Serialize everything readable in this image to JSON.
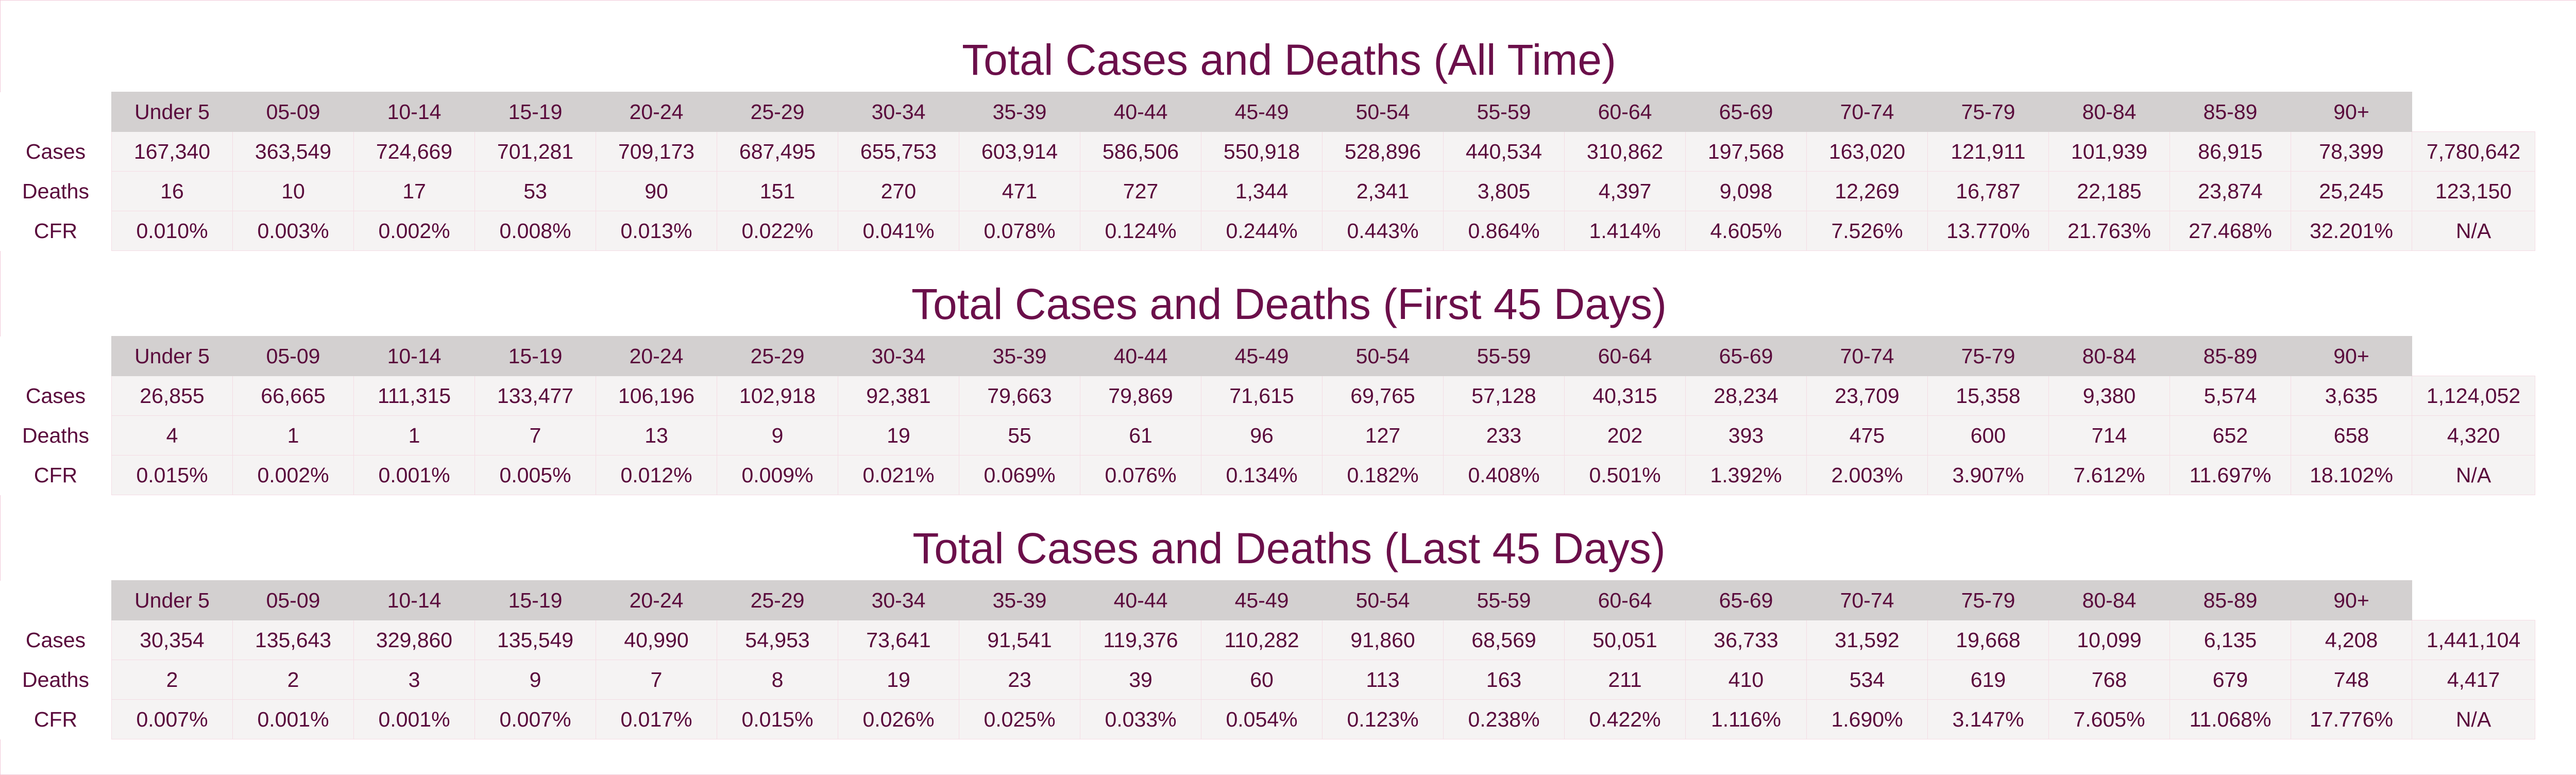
{
  "chart_data": {
    "type": "table",
    "columns": [
      "Under 5",
      "05-09",
      "10-14",
      "15-19",
      "20-24",
      "25-29",
      "30-34",
      "35-39",
      "40-44",
      "45-49",
      "50-54",
      "55-59",
      "60-64",
      "65-69",
      "70-74",
      "75-79",
      "80-84",
      "85-89",
      "90+",
      ""
    ],
    "row_labels": [
      "Cases",
      "Deaths",
      "CFR"
    ],
    "tables": [
      {
        "title": "Total Cases and Deaths (All Time)",
        "rows": [
          [
            "167,340",
            "363,549",
            "724,669",
            "701,281",
            "709,173",
            "687,495",
            "655,753",
            "603,914",
            "586,506",
            "550,918",
            "528,896",
            "440,534",
            "310,862",
            "197,568",
            "163,020",
            "121,911",
            "101,939",
            "86,915",
            "78,399",
            "7,780,642"
          ],
          [
            "16",
            "10",
            "17",
            "53",
            "90",
            "151",
            "270",
            "471",
            "727",
            "1,344",
            "2,341",
            "3,805",
            "4,397",
            "9,098",
            "12,269",
            "16,787",
            "22,185",
            "23,874",
            "25,245",
            "123,150"
          ],
          [
            "0.010%",
            "0.003%",
            "0.002%",
            "0.008%",
            "0.013%",
            "0.022%",
            "0.041%",
            "0.078%",
            "0.124%",
            "0.244%",
            "0.443%",
            "0.864%",
            "1.414%",
            "4.605%",
            "7.526%",
            "13.770%",
            "21.763%",
            "27.468%",
            "32.201%",
            "N/A"
          ]
        ]
      },
      {
        "title": "Total Cases and Deaths (First 45 Days)",
        "rows": [
          [
            "26,855",
            "66,665",
            "111,315",
            "133,477",
            "106,196",
            "102,918",
            "92,381",
            "79,663",
            "79,869",
            "71,615",
            "69,765",
            "57,128",
            "40,315",
            "28,234",
            "23,709",
            "15,358",
            "9,380",
            "5,574",
            "3,635",
            "1,124,052"
          ],
          [
            "4",
            "1",
            "1",
            "7",
            "13",
            "9",
            "19",
            "55",
            "61",
            "96",
            "127",
            "233",
            "202",
            "393",
            "475",
            "600",
            "714",
            "652",
            "658",
            "4,320"
          ],
          [
            "0.015%",
            "0.002%",
            "0.001%",
            "0.005%",
            "0.012%",
            "0.009%",
            "0.021%",
            "0.069%",
            "0.076%",
            "0.134%",
            "0.182%",
            "0.408%",
            "0.501%",
            "1.392%",
            "2.003%",
            "3.907%",
            "7.612%",
            "11.697%",
            "18.102%",
            "N/A"
          ]
        ]
      },
      {
        "title": "Total Cases and Deaths (Last 45 Days)",
        "rows": [
          [
            "30,354",
            "135,643",
            "329,860",
            "135,549",
            "40,990",
            "54,953",
            "73,641",
            "91,541",
            "119,376",
            "110,282",
            "91,860",
            "68,569",
            "50,051",
            "36,733",
            "31,592",
            "19,668",
            "10,099",
            "6,135",
            "4,208",
            "1,441,104"
          ],
          [
            "2",
            "2",
            "3",
            "9",
            "7",
            "8",
            "19",
            "23",
            "39",
            "60",
            "113",
            "163",
            "211",
            "410",
            "534",
            "619",
            "768",
            "679",
            "748",
            "4,417"
          ],
          [
            "0.007%",
            "0.001%",
            "0.001%",
            "0.007%",
            "0.017%",
            "0.015%",
            "0.026%",
            "0.025%",
            "0.033%",
            "0.054%",
            "0.123%",
            "0.238%",
            "0.422%",
            "1.116%",
            "1.690%",
            "3.147%",
            "7.605%",
            "11.068%",
            "17.776%",
            "N/A"
          ]
        ]
      }
    ]
  },
  "colors": {
    "title": "#6b0f4a",
    "text": "#5a0a3c",
    "header_bg": "#d3d0d0",
    "cell_bg": "#f5f3f3",
    "grid": "#f4dce4"
  }
}
